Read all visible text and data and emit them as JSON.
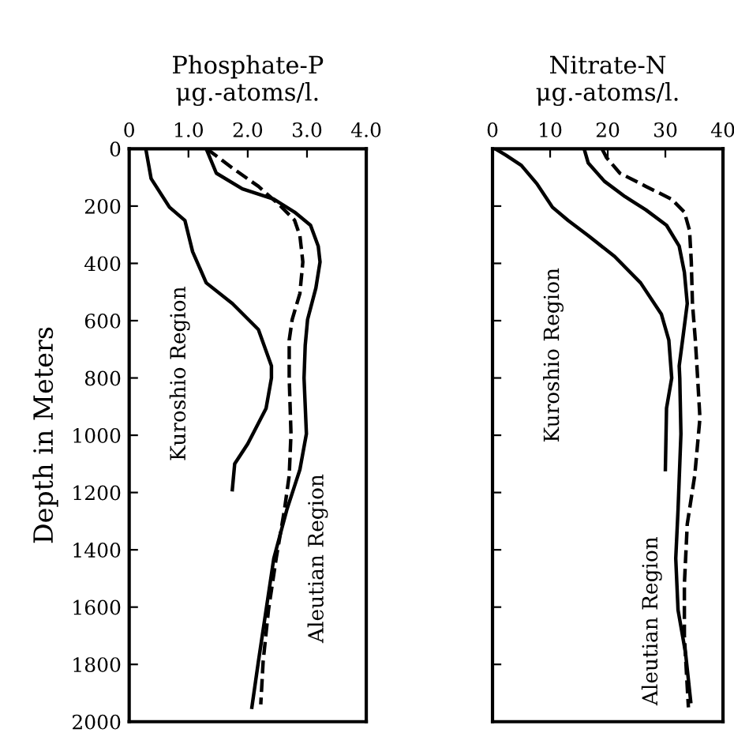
{
  "chart_data": [
    {
      "type": "line",
      "title": "Phosphate-P\nμg.-atoms/l.",
      "ylabel": "Depth in Meters",
      "orientation": "horizontal",
      "grid": false,
      "marker": "none",
      "xlim": [
        0,
        4
      ],
      "xticks": [
        0,
        {
          "value": 1,
          "label": "1.0"
        },
        {
          "value": 2,
          "label": "2.0"
        },
        {
          "value": 3,
          "label": "3.0"
        },
        {
          "value": 4,
          "label": "4.0"
        }
      ],
      "ylim": [
        2000,
        0
      ],
      "yticks": [
        0,
        200,
        400,
        600,
        800,
        1000,
        1200,
        1400,
        1600,
        1800,
        2000
      ],
      "series": [
        {
          "name": "Kuroshio Region",
          "color": "#000000",
          "line_style": "solid",
          "x": [
            0,
            104,
            204,
            250,
            359,
            468,
            540,
            631,
            758,
            800,
            906,
            1030,
            1100,
            1190
          ],
          "values": [
            0.28,
            0.37,
            0.68,
            0.94,
            1.07,
            1.3,
            1.74,
            2.18,
            2.4,
            2.4,
            2.31,
            2.0,
            1.78,
            1.74
          ]
        },
        {
          "name": "Aleutian Region",
          "color": "#000000",
          "line_style": "solid",
          "x": [
            0,
            85,
            140,
            176,
            221,
            267,
            340,
            395,
            486,
            596,
            686,
            800,
            995,
            1120,
            1260,
            1430,
            1610,
            1790,
            1950
          ],
          "values": [
            1.3,
            1.47,
            1.91,
            2.44,
            2.79,
            3.06,
            3.19,
            3.22,
            3.15,
            3.01,
            2.97,
            2.95,
            2.99,
            2.88,
            2.66,
            2.44,
            2.31,
            2.18,
            2.07
          ]
        },
        {
          "color": "#000000",
          "line_style": "dashed",
          "x": [
            0,
            67,
            131,
            195,
            249,
            303,
            395,
            505,
            596,
            668,
            800,
            995,
            1140,
            1260,
            1430,
            1610,
            1790,
            1940
          ],
          "values": [
            1.31,
            1.74,
            2.18,
            2.53,
            2.79,
            2.88,
            2.93,
            2.88,
            2.75,
            2.7,
            2.7,
            2.73,
            2.7,
            2.62,
            2.48,
            2.35,
            2.26,
            2.22
          ]
        }
      ],
      "legend": false
    },
    {
      "type": "line",
      "title": "Nitrate-N\nμg.-atoms/l.",
      "orientation": "horizontal",
      "grid": false,
      "marker": "none",
      "tick_labels": "x",
      "xlim": [
        0,
        40
      ],
      "xticks": [
        0,
        10,
        20,
        30,
        40
      ],
      "ylim": [
        2000,
        0
      ],
      "yticks": [
        0,
        200,
        400,
        600,
        800,
        1000,
        1200,
        1400,
        1600,
        1800,
        2000
      ],
      "series": [
        {
          "name": "Kuroshio Region",
          "color": "#000000",
          "line_style": "solid",
          "x": [
            0,
            22,
            58,
            122,
            204,
            250,
            303,
            376,
            468,
            577,
            668,
            800,
            906,
            1120
          ],
          "values": [
            0.5,
            2.3,
            5.0,
            7.7,
            10.4,
            13.1,
            16.6,
            21.2,
            25.7,
            29.3,
            30.6,
            31.1,
            30.2,
            30.0
          ]
        },
        {
          "name": "Aleutian Region",
          "color": "#000000",
          "line_style": "solid",
          "x": [
            0,
            49,
            113,
            167,
            213,
            267,
            340,
            431,
            540,
            650,
            758,
            800,
            995,
            1260,
            1430,
            1610,
            1760,
            1930
          ],
          "values": [
            15.9,
            16.6,
            19.4,
            23.0,
            26.6,
            30.2,
            32.4,
            33.3,
            33.8,
            33.1,
            32.4,
            32.5,
            32.7,
            32.2,
            31.8,
            32.2,
            33.5,
            34.4
          ]
        },
        {
          "color": "#000000",
          "line_style": "dashed",
          "x": [
            0,
            31,
            85,
            131,
            176,
            221,
            285,
            395,
            540,
            668,
            800,
            940,
            1140,
            1310,
            1520,
            1700,
            1880,
            1950
          ],
          "values": [
            19.0,
            19.8,
            22.1,
            26.6,
            31.1,
            33.3,
            34.2,
            34.5,
            34.7,
            35.2,
            35.6,
            36.0,
            35.1,
            33.8,
            33.3,
            33.3,
            33.8,
            34.0
          ]
        }
      ],
      "legend": false
    }
  ]
}
